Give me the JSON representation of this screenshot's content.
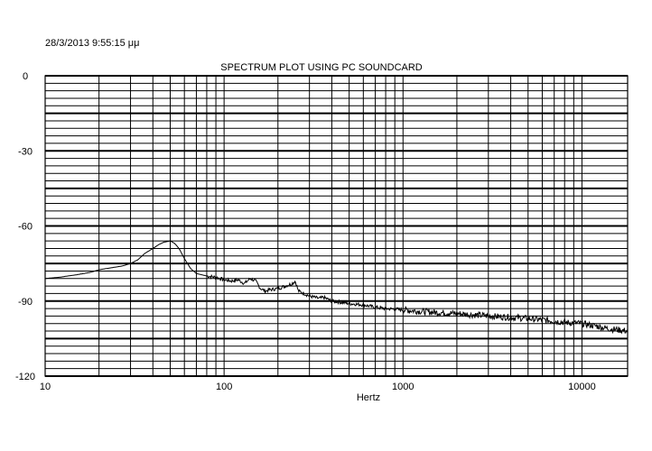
{
  "header": {
    "timestamp": "28/3/2013 9:55:15 μμ"
  },
  "chart_data": {
    "type": "line",
    "title": "SPECTRUM PLOT USING PC SOUNDCARD",
    "xlabel": "Hertz",
    "ylabel": "",
    "x_scale": "log",
    "xlim": [
      10,
      18000
    ],
    "ylim": [
      -120,
      0
    ],
    "x_ticks": [
      {
        "value": 10,
        "label": "10"
      },
      {
        "value": 100,
        "label": "100"
      },
      {
        "value": 1000,
        "label": "1000"
      },
      {
        "value": 10000,
        "label": "10000"
      }
    ],
    "y_ticks": [
      {
        "value": 0,
        "label": "0"
      },
      {
        "value": -30,
        "label": "-30"
      },
      {
        "value": -60,
        "label": "-60"
      },
      {
        "value": -90,
        "label": "-90"
      },
      {
        "value": -120,
        "label": "-120"
      }
    ],
    "grid": true,
    "line_color": "#000000",
    "series": [
      {
        "x": [
          10,
          12,
          15,
          18,
          20,
          23,
          27,
          30,
          33,
          36,
          40,
          43,
          46,
          50,
          53,
          56,
          60,
          65,
          70,
          75,
          80,
          90,
          100,
          110,
          120,
          130,
          140,
          150,
          160,
          170,
          180,
          200,
          220,
          240,
          250,
          260,
          280,
          300,
          320,
          340,
          360,
          400,
          450,
          500,
          600,
          700,
          800,
          1000,
          1200,
          1500,
          2000,
          2500,
          3000,
          4000,
          5000,
          6000,
          7000,
          8000,
          10000,
          12000,
          14000,
          16000,
          18000
        ],
        "y": [
          -81,
          -80.5,
          -79.5,
          -78.5,
          -77.5,
          -76.8,
          -76,
          -75,
          -73.5,
          -71,
          -69,
          -67.5,
          -66.5,
          -66,
          -67,
          -69,
          -73,
          -77,
          -79,
          -79.5,
          -80,
          -80.5,
          -81.5,
          -82,
          -81.5,
          -83,
          -81,
          -82,
          -85,
          -86,
          -85.5,
          -85,
          -84,
          -83,
          -82,
          -86,
          -87,
          -88,
          -88.5,
          -89,
          -88.5,
          -90,
          -90.5,
          -91,
          -91.5,
          -92.5,
          -93,
          -93.5,
          -94,
          -94.5,
          -95,
          -95.5,
          -96,
          -96.5,
          -97,
          -97.5,
          -98,
          -98.5,
          -99,
          -100,
          -101,
          -101.5,
          -102
        ]
      }
    ]
  }
}
